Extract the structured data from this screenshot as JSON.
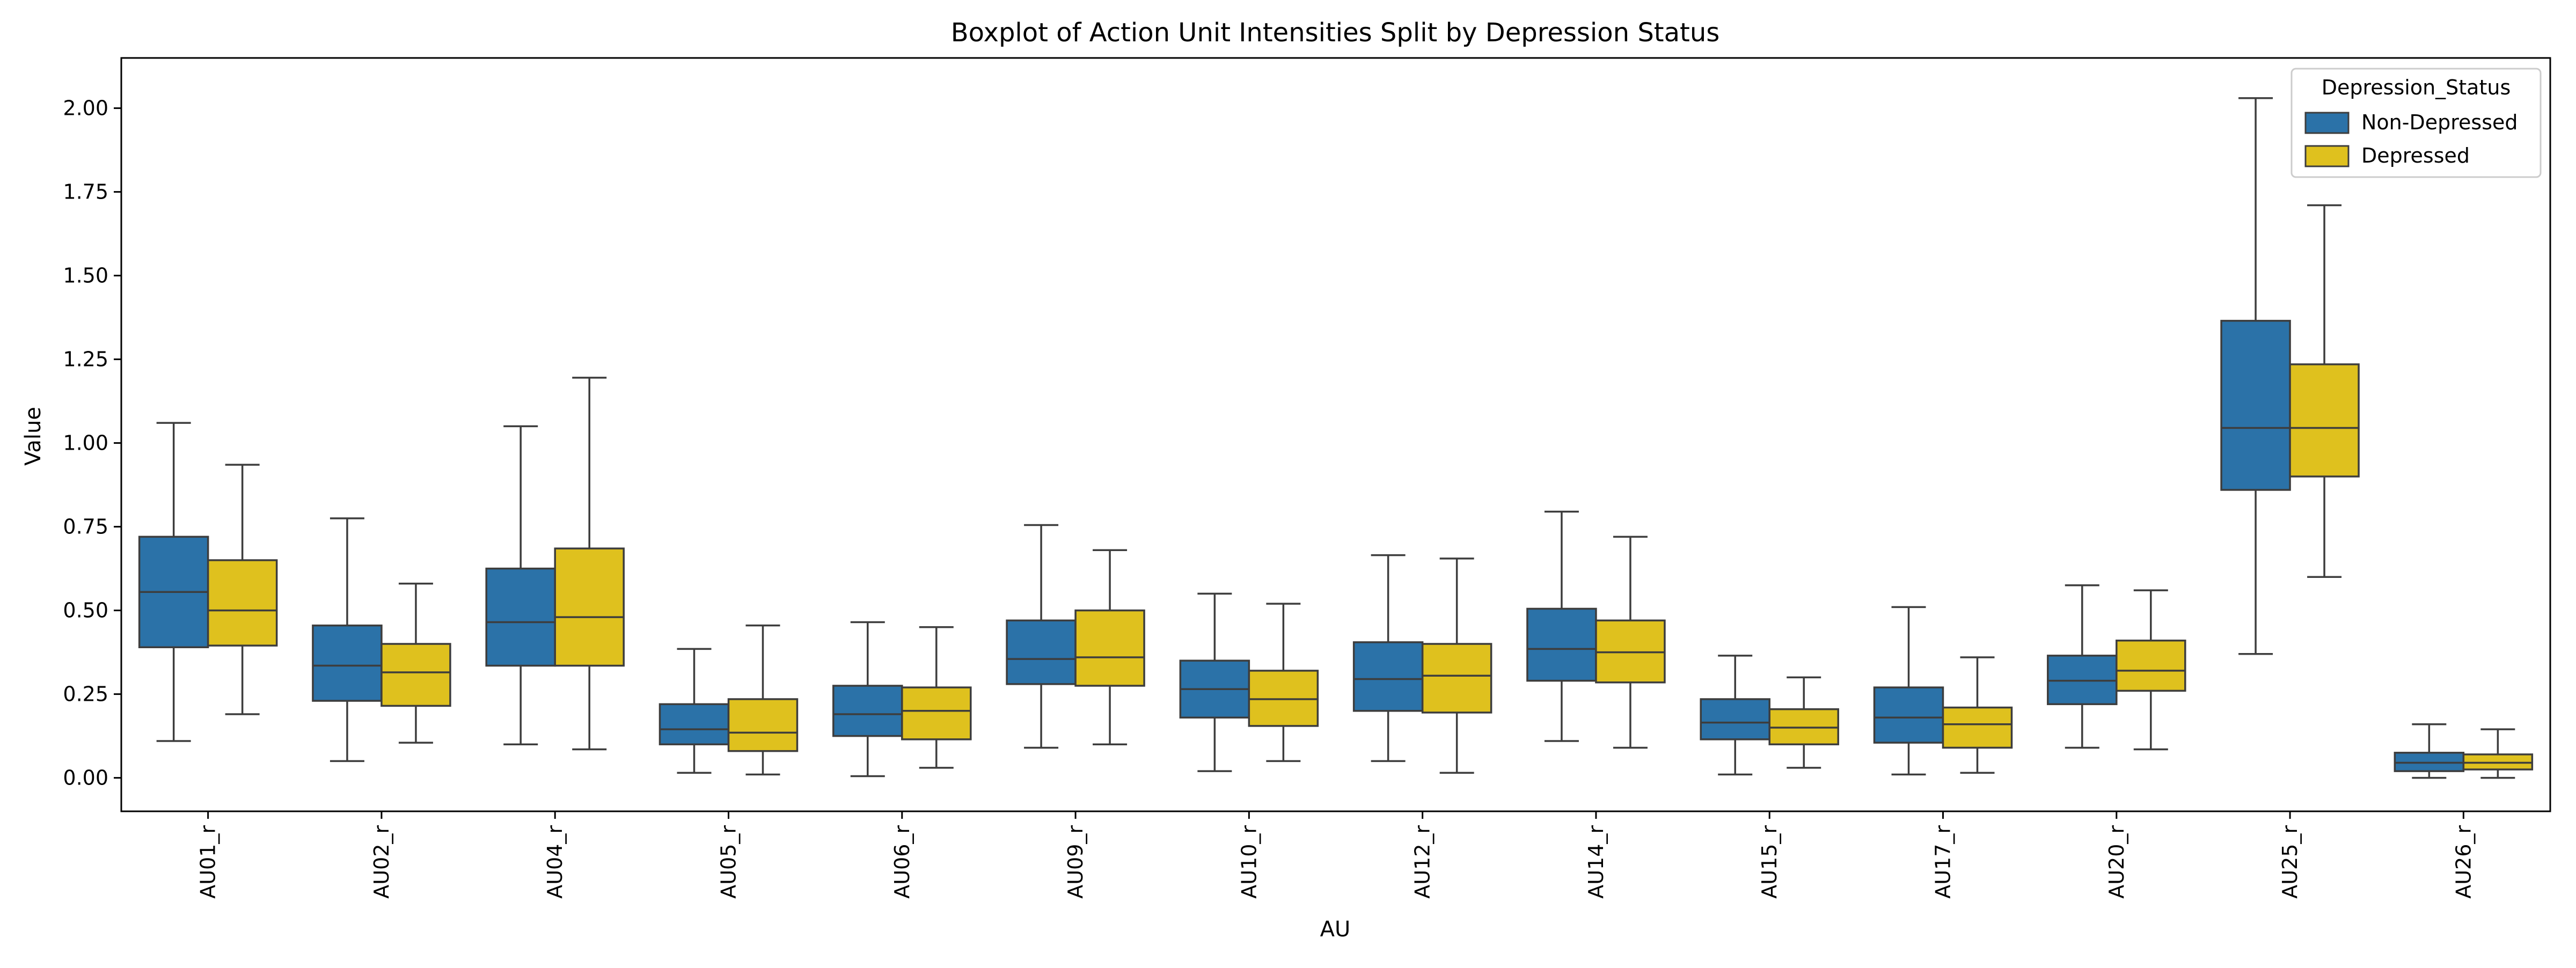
{
  "chart_data": {
    "type": "box",
    "title": "Boxplot of Action Unit Intensities Split by Depression Status",
    "xlabel": "AU",
    "ylabel": "Value",
    "ylim": [
      -0.1,
      2.15
    ],
    "yticks": [
      0.0,
      0.25,
      0.5,
      0.75,
      1.0,
      1.25,
      1.5,
      1.75,
      2.0
    ],
    "ytick_labels": [
      "0.00",
      "0.25",
      "0.50",
      "0.75",
      "1.00",
      "1.25",
      "1.50",
      "1.75",
      "2.00"
    ],
    "grid": false,
    "categories": [
      "AU01_r",
      "AU02_r",
      "AU04_r",
      "AU05_r",
      "AU06_r",
      "AU09_r",
      "AU10_r",
      "AU12_r",
      "AU14_r",
      "AU15_r",
      "AU17_r",
      "AU20_r",
      "AU25_r",
      "AU26_r"
    ],
    "legend": {
      "title": "Depression_Status",
      "placement": "top-right"
    },
    "series": [
      {
        "name": "Non-Depressed",
        "color": "#2b72a8",
        "boxes": [
          {
            "whislo": 0.11,
            "q1": 0.39,
            "med": 0.555,
            "q3": 0.72,
            "whishi": 1.06
          },
          {
            "whislo": 0.05,
            "q1": 0.23,
            "med": 0.335,
            "q3": 0.455,
            "whishi": 0.775
          },
          {
            "whislo": 0.1,
            "q1": 0.335,
            "med": 0.465,
            "q3": 0.625,
            "whishi": 1.05
          },
          {
            "whislo": 0.015,
            "q1": 0.1,
            "med": 0.145,
            "q3": 0.22,
            "whishi": 0.385
          },
          {
            "whislo": 0.005,
            "q1": 0.125,
            "med": 0.19,
            "q3": 0.275,
            "whishi": 0.465
          },
          {
            "whislo": 0.09,
            "q1": 0.28,
            "med": 0.355,
            "q3": 0.47,
            "whishi": 0.755
          },
          {
            "whislo": 0.02,
            "q1": 0.18,
            "med": 0.265,
            "q3": 0.35,
            "whishi": 0.55
          },
          {
            "whislo": 0.05,
            "q1": 0.2,
            "med": 0.295,
            "q3": 0.405,
            "whishi": 0.665
          },
          {
            "whislo": 0.11,
            "q1": 0.29,
            "med": 0.385,
            "q3": 0.505,
            "whishi": 0.795
          },
          {
            "whislo": 0.01,
            "q1": 0.115,
            "med": 0.165,
            "q3": 0.235,
            "whishi": 0.365
          },
          {
            "whislo": 0.01,
            "q1": 0.105,
            "med": 0.18,
            "q3": 0.27,
            "whishi": 0.51
          },
          {
            "whislo": 0.09,
            "q1": 0.22,
            "med": 0.29,
            "q3": 0.365,
            "whishi": 0.575
          },
          {
            "whislo": 0.37,
            "q1": 0.86,
            "med": 1.045,
            "q3": 1.365,
            "whishi": 2.03
          },
          {
            "whislo": 0.0,
            "q1": 0.02,
            "med": 0.045,
            "q3": 0.075,
            "whishi": 0.16
          }
        ]
      },
      {
        "name": "Depressed",
        "color": "#dfc11e",
        "boxes": [
          {
            "whislo": 0.19,
            "q1": 0.395,
            "med": 0.5,
            "q3": 0.65,
            "whishi": 0.935
          },
          {
            "whislo": 0.105,
            "q1": 0.215,
            "med": 0.315,
            "q3": 0.4,
            "whishi": 0.58
          },
          {
            "whislo": 0.085,
            "q1": 0.335,
            "med": 0.48,
            "q3": 0.685,
            "whishi": 1.195
          },
          {
            "whislo": 0.01,
            "q1": 0.08,
            "med": 0.135,
            "q3": 0.235,
            "whishi": 0.455
          },
          {
            "whislo": 0.03,
            "q1": 0.115,
            "med": 0.2,
            "q3": 0.27,
            "whishi": 0.45
          },
          {
            "whislo": 0.1,
            "q1": 0.275,
            "med": 0.36,
            "q3": 0.5,
            "whishi": 0.68
          },
          {
            "whislo": 0.05,
            "q1": 0.155,
            "med": 0.235,
            "q3": 0.32,
            "whishi": 0.52
          },
          {
            "whislo": 0.015,
            "q1": 0.195,
            "med": 0.305,
            "q3": 0.4,
            "whishi": 0.655
          },
          {
            "whislo": 0.09,
            "q1": 0.285,
            "med": 0.375,
            "q3": 0.47,
            "whishi": 0.72
          },
          {
            "whislo": 0.03,
            "q1": 0.1,
            "med": 0.15,
            "q3": 0.205,
            "whishi": 0.3
          },
          {
            "whislo": 0.015,
            "q1": 0.09,
            "med": 0.16,
            "q3": 0.21,
            "whishi": 0.36
          },
          {
            "whislo": 0.085,
            "q1": 0.26,
            "med": 0.32,
            "q3": 0.41,
            "whishi": 0.56
          },
          {
            "whislo": 0.6,
            "q1": 0.9,
            "med": 1.045,
            "q3": 1.235,
            "whishi": 1.71
          },
          {
            "whislo": 0.0,
            "q1": 0.025,
            "med": 0.045,
            "q3": 0.07,
            "whishi": 0.145
          }
        ]
      }
    ]
  }
}
